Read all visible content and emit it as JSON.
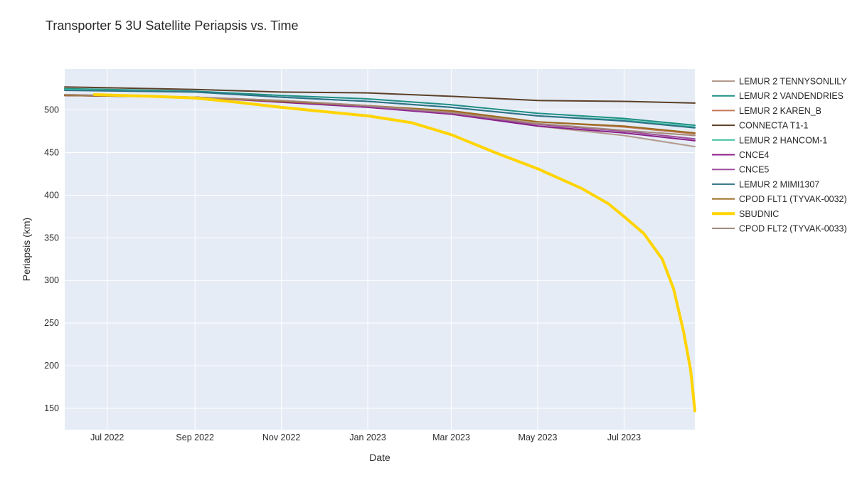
{
  "chart_data": {
    "type": "line",
    "title": "Transporter 5 3U Satellite Periapsis vs. Time",
    "xlabel": "Date",
    "ylabel": "Periapsis (km)",
    "x_ticks": [
      "2022-07-01",
      "2022-09-01",
      "2022-11-01",
      "2023-01-01",
      "2023-03-01",
      "2023-05-01",
      "2023-07-01"
    ],
    "x_tick_labels": [
      "Jul 2022",
      "Sep 2022",
      "Nov 2022",
      "Jan 2023",
      "Mar 2023",
      "May 2023",
      "Jul 2023"
    ],
    "y_ticks": [
      150,
      200,
      250,
      300,
      350,
      400,
      450,
      500
    ],
    "xlim": [
      "2022-06-01",
      "2023-08-20"
    ],
    "ylim": [
      125,
      548
    ],
    "grid": true,
    "legend_position": "right",
    "plot_background": "#e5ecf6",
    "series": [
      {
        "name": "LEMUR 2 TENNYSONLILY",
        "color": "#b49a8c",
        "width": 2,
        "x": [
          "2022-06-01",
          "2022-09-01",
          "2022-11-01",
          "2023-01-01",
          "2023-03-01",
          "2023-05-01",
          "2023-07-01",
          "2023-08-20"
        ],
        "y": [
          518,
          515,
          510,
          505,
          497,
          481,
          470,
          457
        ]
      },
      {
        "name": "LEMUR 2 VANDENDRIES",
        "color": "#1e8f84",
        "width": 2,
        "x": [
          "2022-06-01",
          "2022-09-01",
          "2022-11-01",
          "2023-01-01",
          "2023-03-01",
          "2023-05-01",
          "2023-07-01",
          "2023-08-20"
        ],
        "y": [
          525,
          522,
          517,
          513,
          506,
          496,
          490,
          482
        ]
      },
      {
        "name": "LEMUR 2 KAREN_B",
        "color": "#c47a5a",
        "width": 2,
        "x": [
          "2022-06-01",
          "2022-09-01",
          "2022-11-01",
          "2023-01-01",
          "2023-03-01",
          "2023-05-01",
          "2023-07-01",
          "2023-08-20"
        ],
        "y": [
          517,
          515,
          511,
          505,
          498,
          486,
          480,
          472
        ]
      },
      {
        "name": "CONNECTA T1-1",
        "color": "#5c4027",
        "width": 2,
        "x": [
          "2022-06-01",
          "2022-09-01",
          "2022-11-01",
          "2023-01-01",
          "2023-03-01",
          "2023-05-01",
          "2023-07-01",
          "2023-08-20"
        ],
        "y": [
          527,
          524,
          521,
          520,
          516,
          511,
          510,
          508
        ]
      },
      {
        "name": "LEMUR 2 HANCOM-1",
        "color": "#3cbf9d",
        "width": 2,
        "x": [
          "2022-06-01",
          "2022-09-01",
          "2022-11-01",
          "2023-01-01",
          "2023-03-01",
          "2023-05-01",
          "2023-07-01",
          "2023-08-20"
        ],
        "y": [
          524,
          521,
          515,
          510,
          503,
          493,
          488,
          480
        ]
      },
      {
        "name": "CNCE4",
        "color": "#8a1f8a",
        "width": 2,
        "x": [
          "2022-06-01",
          "2022-09-01",
          "2022-11-01",
          "2023-01-01",
          "2023-03-01",
          "2023-05-01",
          "2023-07-01",
          "2023-08-20"
        ],
        "y": [
          517,
          515,
          509,
          503,
          495,
          481,
          473,
          464
        ]
      },
      {
        "name": "CNCE5",
        "color": "#9b4f9b",
        "width": 2,
        "x": [
          "2022-06-01",
          "2022-09-01",
          "2022-11-01",
          "2023-01-01",
          "2023-03-01",
          "2023-05-01",
          "2023-07-01",
          "2023-08-20"
        ],
        "y": [
          517,
          515,
          510,
          504,
          496,
          483,
          475,
          466
        ]
      },
      {
        "name": "LEMUR 2 MIMI1307",
        "color": "#2f6f86",
        "width": 2,
        "x": [
          "2022-06-01",
          "2022-09-01",
          "2022-11-01",
          "2023-01-01",
          "2023-03-01",
          "2023-05-01",
          "2023-07-01",
          "2023-08-20"
        ],
        "y": [
          523,
          521,
          515,
          510,
          503,
          493,
          487,
          479
        ]
      },
      {
        "name": "CPOD FLT1 (TYVAK-0032)",
        "color": "#9a6a1e",
        "width": 2,
        "x": [
          "2022-06-01",
          "2022-09-01",
          "2022-11-01",
          "2023-01-01",
          "2023-03-01",
          "2023-05-01",
          "2023-07-01",
          "2023-08-20"
        ],
        "y": [
          517,
          515,
          510,
          505,
          499,
          486,
          481,
          473
        ]
      },
      {
        "name": "SBUDNIC",
        "color": "#ffd400",
        "width": 4,
        "x": [
          "2022-06-22",
          "2022-08-01",
          "2022-09-01",
          "2022-10-01",
          "2022-11-01",
          "2022-12-01",
          "2023-01-01",
          "2023-02-01",
          "2023-03-01",
          "2023-04-01",
          "2023-05-01",
          "2023-06-01",
          "2023-06-20",
          "2023-07-01",
          "2023-07-15",
          "2023-07-28",
          "2023-08-05",
          "2023-08-12",
          "2023-08-17",
          "2023-08-20"
        ],
        "y": [
          518,
          516,
          514,
          509,
          503,
          498,
          493,
          485,
          471,
          450,
          431,
          408,
          390,
          375,
          355,
          325,
          290,
          240,
          195,
          147
        ]
      },
      {
        "name": "CPOD FLT2 (TYVAK-0033)",
        "color": "#a58a7a",
        "width": 2,
        "x": [
          "2022-06-01",
          "2022-09-01",
          "2022-11-01",
          "2023-01-01",
          "2023-03-01",
          "2023-05-01",
          "2023-07-01",
          "2023-08-20"
        ],
        "y": [
          518,
          515,
          511,
          505,
          497,
          484,
          476,
          470
        ]
      }
    ]
  }
}
